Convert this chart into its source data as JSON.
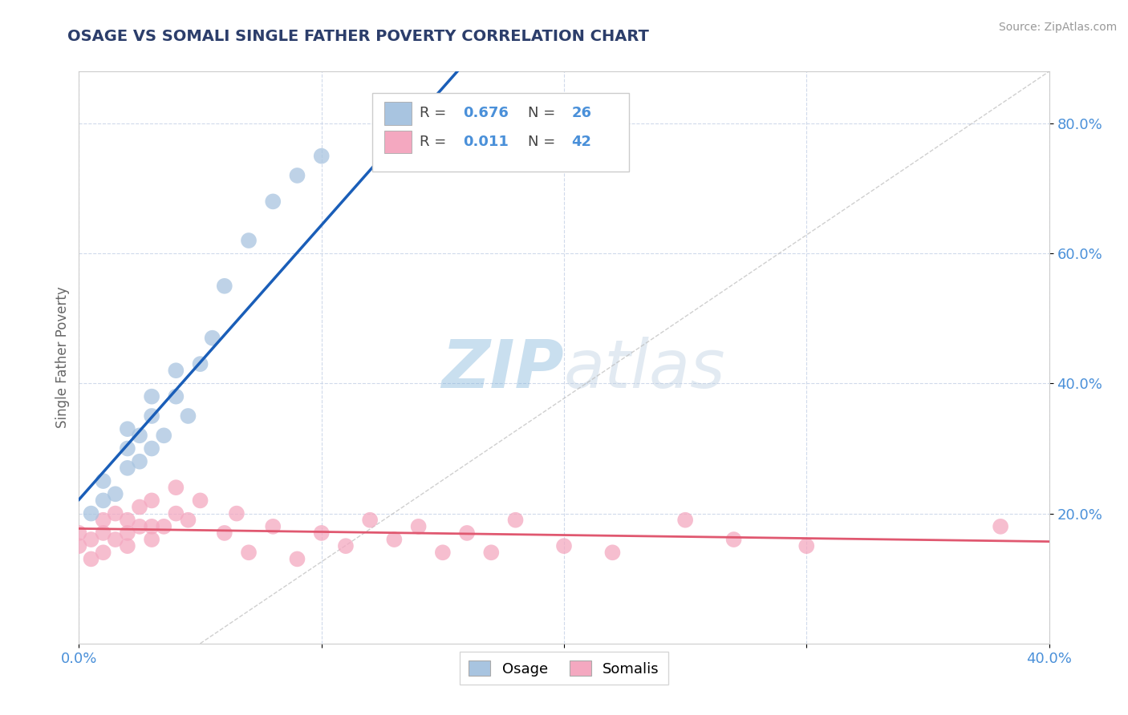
{
  "title": "OSAGE VS SOMALI SINGLE FATHER POVERTY CORRELATION CHART",
  "source": "Source: ZipAtlas.com",
  "ylabel": "Single Father Poverty",
  "xlim": [
    0.0,
    0.4
  ],
  "ylim": [
    0.0,
    0.88
  ],
  "osage_color": "#a8c4e0",
  "somali_color": "#f4a8c0",
  "osage_line_color": "#1a5eb8",
  "somali_line_color": "#e05870",
  "watermark_color": "#d0e4f5",
  "background_color": "#ffffff",
  "grid_color": "#c8d4e8",
  "title_color": "#2c3e6b",
  "axis_label_color": "#666666",
  "tick_label_color": "#4a90d9",
  "legend_r1": "0.676",
  "legend_n1": "26",
  "legend_r2": "0.011",
  "legend_n2": "42",
  "osage_x": [
    0.005,
    0.01,
    0.01,
    0.015,
    0.02,
    0.02,
    0.02,
    0.025,
    0.025,
    0.03,
    0.03,
    0.03,
    0.035,
    0.04,
    0.04,
    0.045,
    0.05,
    0.055,
    0.06,
    0.07,
    0.08,
    0.09,
    0.1,
    0.13,
    0.15,
    0.18
  ],
  "osage_y": [
    0.2,
    0.22,
    0.25,
    0.23,
    0.27,
    0.3,
    0.33,
    0.28,
    0.32,
    0.3,
    0.35,
    0.38,
    0.32,
    0.38,
    0.42,
    0.35,
    0.43,
    0.47,
    0.55,
    0.62,
    0.68,
    0.72,
    0.75,
    0.78,
    0.8,
    0.82
  ],
  "somali_x": [
    0.0,
    0.0,
    0.005,
    0.005,
    0.01,
    0.01,
    0.01,
    0.015,
    0.015,
    0.02,
    0.02,
    0.02,
    0.025,
    0.025,
    0.03,
    0.03,
    0.03,
    0.035,
    0.04,
    0.04,
    0.045,
    0.05,
    0.06,
    0.065,
    0.07,
    0.08,
    0.09,
    0.1,
    0.11,
    0.12,
    0.13,
    0.14,
    0.15,
    0.16,
    0.17,
    0.18,
    0.2,
    0.22,
    0.25,
    0.27,
    0.3,
    0.38
  ],
  "somali_y": [
    0.17,
    0.15,
    0.16,
    0.13,
    0.17,
    0.19,
    0.14,
    0.16,
    0.2,
    0.17,
    0.19,
    0.15,
    0.18,
    0.21,
    0.16,
    0.18,
    0.22,
    0.18,
    0.2,
    0.24,
    0.19,
    0.22,
    0.17,
    0.2,
    0.14,
    0.18,
    0.13,
    0.17,
    0.15,
    0.19,
    0.16,
    0.18,
    0.14,
    0.17,
    0.14,
    0.19,
    0.15,
    0.14,
    0.19,
    0.16,
    0.15,
    0.18
  ]
}
